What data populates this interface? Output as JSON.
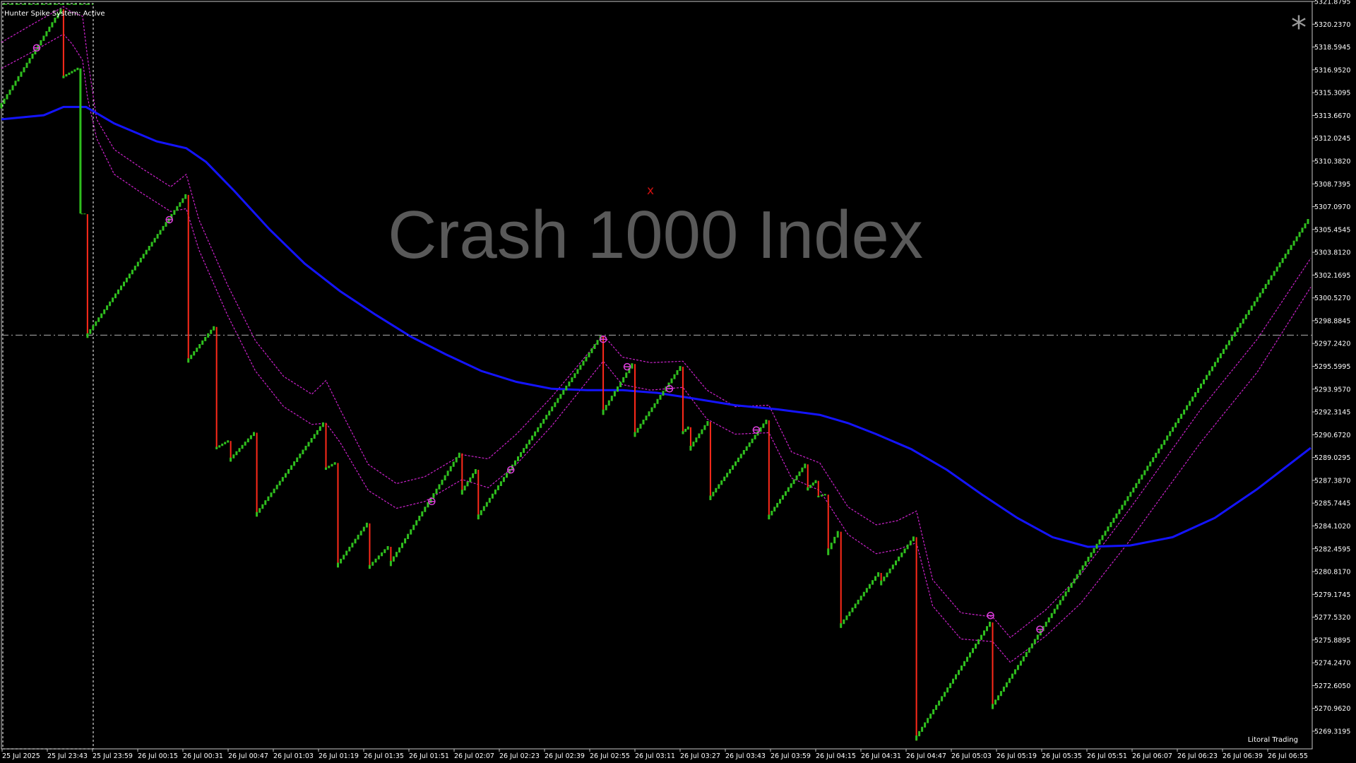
{
  "symbol": "Crash 1000 Index",
  "status_text": "Hunter Spike System: Active",
  "credit": "Litoral Trading",
  "marker_text": "x",
  "star_symbol": "*",
  "colors": {
    "background": "#000000",
    "up_bar": "#2fbf1e",
    "spike": "#ff2a1a",
    "moving_average": "#1414ff",
    "envelope": "#cc22cc",
    "signal_marker": "#e040e0",
    "price_line": "#b0b0b0"
  },
  "chart_data": {
    "type": "line",
    "title": "Crash 1000 Index",
    "ylim": [
      5267.5,
      5321.88
    ],
    "y_ticks": [
      "5321.8795",
      "5320.2370",
      "5318.5945",
      "5316.9520",
      "5315.3095",
      "5313.6670",
      "5312.0245",
      "5310.3820",
      "5308.7395",
      "5307.0970",
      "5305.4545",
      "5303.8120",
      "5302.1695",
      "5300.5270",
      "5298.8845",
      "5297.2420",
      "5295.5995",
      "5293.9570",
      "5292.3145",
      "5290.6720",
      "5289.0295",
      "5287.3870",
      "5285.7445",
      "5284.1020",
      "5282.4595",
      "5280.8170",
      "5279.1745",
      "5277.5320",
      "5275.8895",
      "5274.2470",
      "5272.6050",
      "5270.9620",
      "5269.3195"
    ],
    "x_ticks": [
      "25 Jul 2025",
      "25 Jul 23:43",
      "25 Jul 23:59",
      "26 Jul 00:15",
      "26 Jul 00:31",
      "26 Jul 00:47",
      "26 Jul 01:03",
      "26 Jul 01:19",
      "26 Jul 01:35",
      "26 Jul 01:51",
      "26 Jul 02:07",
      "26 Jul 02:23",
      "26 Jul 02:39",
      "26 Jul 02:55",
      "26 Jul 03:11",
      "26 Jul 03:27",
      "26 Jul 03:43",
      "26 Jul 03:59",
      "26 Jul 04:15",
      "26 Jul 04:31",
      "26 Jul 04:47",
      "26 Jul 05:03",
      "26 Jul 05:19",
      "26 Jul 05:35",
      "26 Jul 05:51",
      "26 Jul 06:07",
      "26 Jul 06:23",
      "26 Jul 06:39",
      "26 Jul 06:55"
    ],
    "current_price": 5297.6,
    "price_path": [
      [
        0,
        5314.1
      ],
      [
        88,
        5321.3
      ],
      [
        88,
        5316.3
      ],
      [
        112,
        5317.0
      ],
      [
        114,
        5306.4
      ],
      [
        122,
        5306.4
      ],
      [
        122,
        5297.4
      ],
      [
        265,
        5307.8
      ],
      [
        265,
        5295.6
      ],
      [
        305,
        5298.2
      ],
      [
        305,
        5289.3
      ],
      [
        325,
        5289.9
      ],
      [
        325,
        5288.4
      ],
      [
        362,
        5290.5
      ],
      [
        362,
        5284.4
      ],
      [
        460,
        5291.2
      ],
      [
        460,
        5287.8
      ],
      [
        477,
        5288.3
      ],
      [
        477,
        5280.7
      ],
      [
        522,
        5283.9
      ],
      [
        522,
        5280.6
      ],
      [
        552,
        5282.2
      ],
      [
        552,
        5280.8
      ],
      [
        653,
        5289.0
      ],
      [
        653,
        5286.0
      ],
      [
        676,
        5287.8
      ],
      [
        676,
        5284.2
      ],
      [
        853,
        5297.5
      ],
      [
        853,
        5291.8
      ],
      [
        898,
        5295.5
      ],
      [
        898,
        5290.2
      ],
      [
        966,
        5295.3
      ],
      [
        966,
        5290.4
      ],
      [
        977,
        5290.9
      ],
      [
        977,
        5289.2
      ],
      [
        1005,
        5291.3
      ],
      [
        1005,
        5285.6
      ],
      [
        1088,
        5291.4
      ],
      [
        1088,
        5284.2
      ],
      [
        1143,
        5288.2
      ],
      [
        1143,
        5286.3
      ],
      [
        1158,
        5287.0
      ],
      [
        1158,
        5285.8
      ],
      [
        1172,
        5286.0
      ],
      [
        1172,
        5281.6
      ],
      [
        1190,
        5283.3
      ],
      [
        1190,
        5276.3
      ],
      [
        1247,
        5280.3
      ],
      [
        1247,
        5279.4
      ],
      [
        1297,
        5282.9
      ],
      [
        1297,
        5268.1
      ],
      [
        1405,
        5276.7
      ],
      [
        1405,
        5270.4
      ],
      [
        1856,
        5306.0
      ]
    ],
    "moving_average": [
      [
        0,
        5313.3
      ],
      [
        60,
        5313.6
      ],
      [
        88,
        5314.2
      ],
      [
        120,
        5314.2
      ],
      [
        160,
        5313.0
      ],
      [
        220,
        5311.7
      ],
      [
        262,
        5311.2
      ],
      [
        290,
        5310.2
      ],
      [
        330,
        5308.1
      ],
      [
        380,
        5305.3
      ],
      [
        430,
        5302.8
      ],
      [
        480,
        5300.8
      ],
      [
        530,
        5299.1
      ],
      [
        580,
        5297.5
      ],
      [
        630,
        5296.2
      ],
      [
        680,
        5295.0
      ],
      [
        730,
        5294.2
      ],
      [
        780,
        5293.7
      ],
      [
        830,
        5293.6
      ],
      [
        880,
        5293.6
      ],
      [
        930,
        5293.4
      ],
      [
        980,
        5293.0
      ],
      [
        1040,
        5292.5
      ],
      [
        1100,
        5292.2
      ],
      [
        1160,
        5291.8
      ],
      [
        1200,
        5291.2
      ],
      [
        1240,
        5290.4
      ],
      [
        1290,
        5289.3
      ],
      [
        1340,
        5287.8
      ],
      [
        1390,
        5286.0
      ],
      [
        1440,
        5284.3
      ],
      [
        1490,
        5282.9
      ],
      [
        1540,
        5282.2
      ],
      [
        1600,
        5282.3
      ],
      [
        1660,
        5282.9
      ],
      [
        1720,
        5284.3
      ],
      [
        1780,
        5286.4
      ],
      [
        1856,
        5289.4
      ]
    ],
    "envelope_upper": [
      [
        0,
        5318.9
      ],
      [
        40,
        5320.1
      ],
      [
        88,
        5321.5
      ],
      [
        100,
        5321.1
      ],
      [
        115,
        5320.8
      ],
      [
        122,
        5317.8
      ],
      [
        135,
        5313.3
      ],
      [
        160,
        5311.1
      ],
      [
        200,
        5309.7
      ],
      [
        240,
        5308.4
      ],
      [
        262,
        5309.3
      ],
      [
        280,
        5306.0
      ],
      [
        320,
        5301.3
      ],
      [
        360,
        5297.2
      ],
      [
        400,
        5294.6
      ],
      [
        440,
        5293.3
      ],
      [
        460,
        5294.3
      ],
      [
        480,
        5292.2
      ],
      [
        520,
        5288.2
      ],
      [
        560,
        5286.8
      ],
      [
        600,
        5287.3
      ],
      [
        653,
        5288.9
      ],
      [
        690,
        5288.6
      ],
      [
        730,
        5290.4
      ],
      [
        780,
        5293.1
      ],
      [
        853,
        5297.6
      ],
      [
        880,
        5296.0
      ],
      [
        920,
        5295.6
      ],
      [
        966,
        5295.7
      ],
      [
        1000,
        5293.6
      ],
      [
        1040,
        5292.4
      ],
      [
        1088,
        5292.5
      ],
      [
        1120,
        5289.1
      ],
      [
        1160,
        5288.3
      ],
      [
        1200,
        5285.1
      ],
      [
        1240,
        5283.8
      ],
      [
        1270,
        5284.1
      ],
      [
        1297,
        5284.8
      ],
      [
        1320,
        5279.8
      ],
      [
        1360,
        5277.4
      ],
      [
        1405,
        5277.1
      ],
      [
        1430,
        5275.6
      ],
      [
        1480,
        5277.6
      ],
      [
        1530,
        5280.2
      ],
      [
        1600,
        5285.0
      ],
      [
        1700,
        5292.2
      ],
      [
        1780,
        5297.3
      ],
      [
        1856,
        5303.2
      ]
    ],
    "envelope_lower": [
      [
        0,
        5317.0
      ],
      [
        40,
        5318.1
      ],
      [
        88,
        5319.5
      ],
      [
        100,
        5318.8
      ],
      [
        115,
        5317.6
      ],
      [
        122,
        5314.9
      ],
      [
        135,
        5311.9
      ],
      [
        160,
        5309.3
      ],
      [
        200,
        5307.9
      ],
      [
        240,
        5306.6
      ],
      [
        262,
        5306.8
      ],
      [
        280,
        5303.8
      ],
      [
        320,
        5299.1
      ],
      [
        360,
        5295.0
      ],
      [
        400,
        5292.4
      ],
      [
        440,
        5291.1
      ],
      [
        460,
        5291.2
      ],
      [
        480,
        5289.8
      ],
      [
        520,
        5286.3
      ],
      [
        560,
        5285.0
      ],
      [
        600,
        5285.5
      ],
      [
        653,
        5287.1
      ],
      [
        690,
        5286.5
      ],
      [
        730,
        5288.2
      ],
      [
        780,
        5291.0
      ],
      [
        853,
        5295.7
      ],
      [
        880,
        5294.0
      ],
      [
        920,
        5293.6
      ],
      [
        966,
        5293.8
      ],
      [
        1000,
        5291.5
      ],
      [
        1040,
        5290.4
      ],
      [
        1088,
        5290.5
      ],
      [
        1120,
        5287.2
      ],
      [
        1160,
        5286.3
      ],
      [
        1200,
        5283.1
      ],
      [
        1240,
        5281.7
      ],
      [
        1270,
        5282.0
      ],
      [
        1297,
        5282.5
      ],
      [
        1320,
        5277.9
      ],
      [
        1360,
        5275.5
      ],
      [
        1405,
        5275.3
      ],
      [
        1430,
        5273.8
      ],
      [
        1480,
        5275.7
      ],
      [
        1530,
        5278.1
      ],
      [
        1600,
        5282.7
      ],
      [
        1700,
        5289.8
      ],
      [
        1780,
        5294.9
      ],
      [
        1856,
        5301.1
      ]
    ],
    "signal_markers": [
      [
        50,
        5318.5
      ],
      [
        238,
        5306.0
      ],
      [
        610,
        5285.5
      ],
      [
        722,
        5287.8
      ],
      [
        853,
        5297.3
      ],
      [
        887,
        5295.3
      ],
      [
        947,
        5293.7
      ],
      [
        1070,
        5290.7
      ],
      [
        1402,
        5277.2
      ],
      [
        1472,
        5276.2
      ]
    ]
  }
}
